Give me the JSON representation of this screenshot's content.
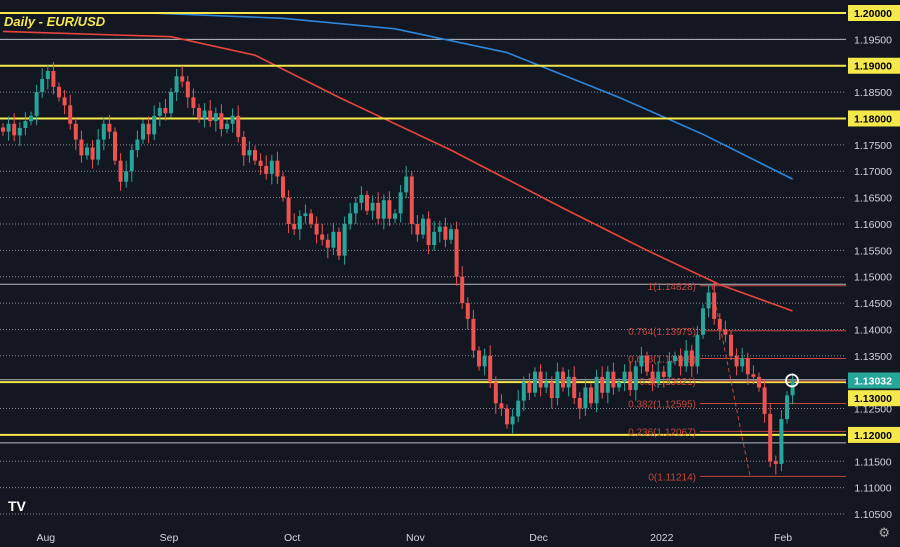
{
  "header": {
    "title": "Daily - EUR/USD"
  },
  "colors": {
    "background": "#131722",
    "up": "#26a69a",
    "down": "#ef5350",
    "level": "#f5e84a",
    "ma_fast": "#e8453c",
    "ma_slow": "#2f86d8",
    "fib": "#c8463c",
    "current_price": "#26a69a"
  },
  "icons": {
    "logo": "tradingview-logo",
    "settings": "gear-icon"
  },
  "logo_text": "TV",
  "chart_data": {
    "type": "candlestick",
    "title": "Daily - EUR/USD",
    "ylim": [
      1.103,
      1.2015
    ],
    "y_ticks": [
      "1.20000",
      "1.19500",
      "1.19000",
      "1.18500",
      "1.18000",
      "1.17500",
      "1.17000",
      "1.16500",
      "1.16000",
      "1.15500",
      "1.15000",
      "1.14500",
      "1.14000",
      "1.13500",
      "1.13000",
      "1.12500",
      "1.12000",
      "1.11500",
      "1.11000",
      "1.10500"
    ],
    "x_ticks": [
      {
        "label": "Aug",
        "index": 8
      },
      {
        "label": "Sep",
        "index": 30
      },
      {
        "label": "Oct",
        "index": 52
      },
      {
        "label": "Nov",
        "index": 74
      },
      {
        "label": "Dec",
        "index": 96
      },
      {
        "label": "2022",
        "index": 118
      },
      {
        "label": "Feb",
        "index": 140
      }
    ],
    "closes": [
      1.1775,
      1.179,
      1.1768,
      1.1782,
      1.1795,
      1.1805,
      1.185,
      1.1875,
      1.189,
      1.186,
      1.184,
      1.1825,
      1.179,
      1.176,
      1.173,
      1.1745,
      1.1722,
      1.176,
      1.179,
      1.1775,
      1.172,
      1.168,
      1.17,
      1.174,
      1.176,
      1.179,
      1.177,
      1.1805,
      1.182,
      1.181,
      1.185,
      1.188,
      1.187,
      1.184,
      1.182,
      1.18,
      1.1815,
      1.1795,
      1.181,
      1.178,
      1.179,
      1.1805,
      1.1765,
      1.173,
      1.174,
      1.172,
      1.171,
      1.1695,
      1.172,
      1.169,
      1.165,
      1.16,
      1.159,
      1.1615,
      1.162,
      1.16,
      1.158,
      1.157,
      1.1555,
      1.1585,
      1.154,
      1.16,
      1.162,
      1.164,
      1.1655,
      1.1625,
      1.164,
      1.161,
      1.1645,
      1.161,
      1.162,
      1.166,
      1.169,
      1.16,
      1.158,
      1.161,
      1.156,
      1.1585,
      1.1595,
      1.157,
      1.159,
      1.15,
      1.145,
      1.142,
      1.136,
      1.133,
      1.135,
      1.13,
      1.126,
      1.125,
      1.122,
      1.1235,
      1.1265,
      1.13,
      1.128,
      1.132,
      1.129,
      1.13,
      1.127,
      1.132,
      1.129,
      1.131,
      1.127,
      1.125,
      1.129,
      1.126,
      1.131,
      1.128,
      1.132,
      1.129,
      1.13,
      1.132,
      1.1285,
      1.133,
      1.135,
      1.132,
      1.13,
      1.132,
      1.131,
      1.134,
      1.135,
      1.133,
      1.136,
      1.133,
      1.139,
      1.144,
      1.147,
      1.142,
      1.14,
      1.139,
      1.135,
      1.133,
      1.1345,
      1.1315,
      1.131,
      1.129,
      1.124,
      1.115,
      1.1145,
      1.123,
      1.1275,
      1.1303
    ],
    "ma_slow": [
      [
        0,
        1.2
      ],
      [
        26,
        1.2
      ],
      [
        50,
        1.199
      ],
      [
        70,
        1.197
      ],
      [
        90,
        1.1925
      ],
      [
        110,
        1.184
      ],
      [
        125,
        1.177
      ],
      [
        141,
        1.1685
      ]
    ],
    "ma_fast": [
      [
        0,
        1.1965
      ],
      [
        30,
        1.1955
      ],
      [
        45,
        1.192
      ],
      [
        60,
        1.184
      ],
      [
        80,
        1.174
      ],
      [
        100,
        1.163
      ],
      [
        115,
        1.155
      ],
      [
        128,
        1.1485
      ],
      [
        141,
        1.1435
      ]
    ],
    "levels": [
      {
        "price": 1.2,
        "label": "1.20000"
      },
      {
        "price": 1.19,
        "label": "1.19000"
      },
      {
        "price": 1.18,
        "label": "1.18000"
      },
      {
        "price": 1.13,
        "label": "1.13000"
      },
      {
        "price": 1.12,
        "label": "1.12000"
      }
    ],
    "current_price": {
      "price": 1.13032,
      "label": "1.13032"
    },
    "fib": [
      {
        "label": "1(1.14828)",
        "price": 1.14828
      },
      {
        "label": "0.764(1.13975)",
        "price": 1.13975
      },
      {
        "label": "0.618(1.13448)",
        "price": 1.13448
      },
      {
        "label": "0.5(1.13021)",
        "price": 1.13021
      },
      {
        "label": "0.382(1.12595)",
        "price": 1.12595
      },
      {
        "label": "0.236(1.12067)",
        "price": 1.12067
      },
      {
        "label": "0(1.11214)",
        "price": 1.11214
      }
    ],
    "grid": true
  }
}
